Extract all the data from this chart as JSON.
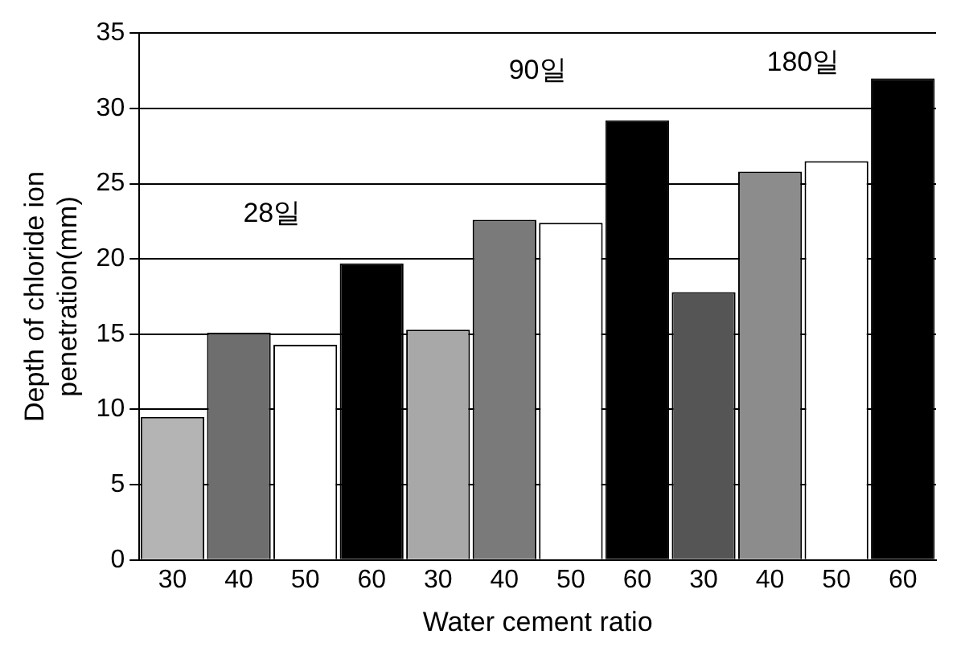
{
  "chart_data": {
    "type": "bar",
    "xlabel": "Water cement ratio",
    "ylabel": "Depth of chloride ion\npenetration(mm)",
    "categories": [
      "30",
      "40",
      "50",
      "60",
      "30",
      "40",
      "50",
      "60",
      "30",
      "40",
      "50",
      "60"
    ],
    "values": [
      9.5,
      15.1,
      14.3,
      19.7,
      15.3,
      22.6,
      22.4,
      29.2,
      17.8,
      25.8,
      26.5,
      32.0
    ],
    "colors": [
      "#b4b4b4",
      "#6e6e6e",
      "#ffffff",
      "#000000",
      "#a8a8a8",
      "#7a7a7a",
      "#ffffff",
      "#000000",
      "#555555",
      "#8c8c8c",
      "#ffffff",
      "#000000"
    ],
    "annotations": [
      "28일",
      "90일",
      "180일"
    ],
    "ylim": [
      0,
      35
    ],
    "yticks": [
      0,
      5,
      10,
      15,
      20,
      25,
      30,
      35
    ],
    "grid": "y",
    "legend": false
  }
}
